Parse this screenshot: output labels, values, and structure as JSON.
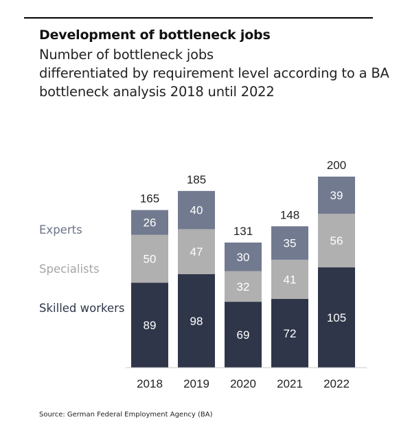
{
  "header": {
    "title": "Development of bottleneck jobs",
    "subtitle_lines": [
      "Number of bottleneck jobs",
      "differentiated by requirement level according to a BA",
      "bottleneck analysis 2018 until 2022"
    ]
  },
  "footer": {
    "source": "Source: German Federal Employment Agency (BA)"
  },
  "chart_data": {
    "type": "bar",
    "stacked": true,
    "title": "Development of bottleneck jobs",
    "categories": [
      "2018",
      "2019",
      "2020",
      "2021",
      "2022"
    ],
    "series": [
      {
        "name": "Skilled workers",
        "values": [
          89,
          98,
          69,
          72,
          105
        ],
        "color": "#2f3649",
        "label_color": "#ffffff",
        "legend_color": "#2f3649"
      },
      {
        "name": "Specialists",
        "values": [
          50,
          47,
          32,
          41,
          56
        ],
        "color": "#b0b0b0",
        "label_color": "#ffffff",
        "legend_color": "#a5a5a5"
      },
      {
        "name": "Experts",
        "values": [
          26,
          40,
          30,
          35,
          39
        ],
        "color": "#717a8e",
        "label_color": "#ffffff",
        "legend_color": "#6a7386"
      }
    ],
    "totals": [
      165,
      185,
      131,
      148,
      200
    ],
    "ylim": [
      0,
      200
    ],
    "legend_position": "left",
    "grid": false
  }
}
